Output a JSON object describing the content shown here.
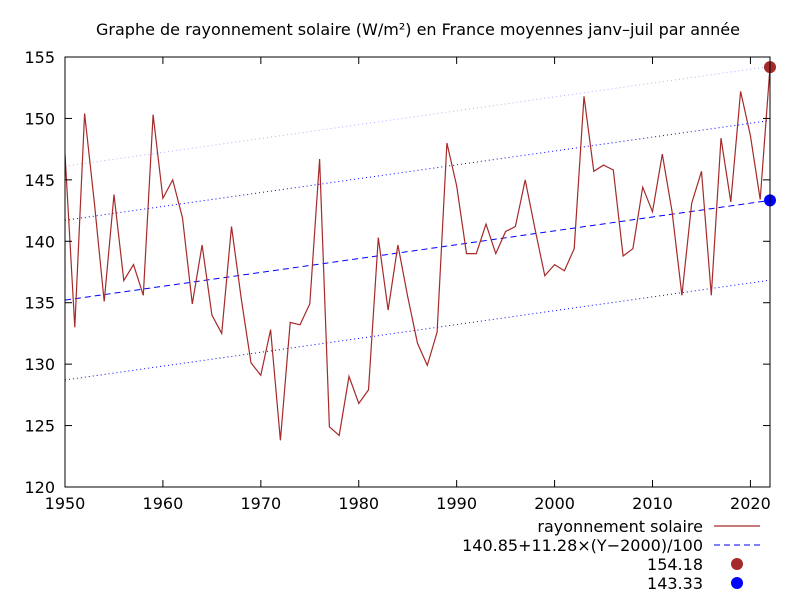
{
  "chart_data": {
    "type": "line",
    "title": "Graphe de rayonnement solaire (W/m²) en France moyennes janv–juil par année",
    "xlabel": "",
    "ylabel": "",
    "xlim": [
      1950,
      2022
    ],
    "ylim": [
      120,
      155
    ],
    "xticks": [
      1950,
      1960,
      1970,
      1980,
      1990,
      2000,
      2010,
      2020
    ],
    "yticks": [
      120,
      125,
      130,
      135,
      140,
      145,
      150,
      155
    ],
    "grid": false,
    "legend_position": "bottom-right",
    "series": [
      {
        "name": "rayonnement solaire",
        "kind": "line",
        "color": "#a52a2a",
        "x": [
          1950,
          1951,
          1952,
          1953,
          1954,
          1955,
          1956,
          1957,
          1958,
          1959,
          1960,
          1961,
          1962,
          1963,
          1964,
          1965,
          1966,
          1967,
          1968,
          1969,
          1970,
          1971,
          1972,
          1973,
          1974,
          1975,
          1976,
          1977,
          1978,
          1979,
          1980,
          1981,
          1982,
          1983,
          1984,
          1985,
          1986,
          1987,
          1988,
          1989,
          1990,
          1991,
          1992,
          1993,
          1994,
          1995,
          1996,
          1997,
          1998,
          1999,
          2000,
          2001,
          2002,
          2003,
          2004,
          2005,
          2006,
          2007,
          2008,
          2009,
          2010,
          2011,
          2012,
          2013,
          2014,
          2015,
          2016,
          2017,
          2018,
          2019,
          2020,
          2021,
          2022
        ],
        "values": [
          147.1,
          133.0,
          150.4,
          143.1,
          135.1,
          143.8,
          136.8,
          138.1,
          135.6,
          150.3,
          143.5,
          145.0,
          141.9,
          134.9,
          139.7,
          134.0,
          132.5,
          141.2,
          135.3,
          130.1,
          129.1,
          132.8,
          123.8,
          133.4,
          133.2,
          134.9,
          146.7,
          124.9,
          124.2,
          129.0,
          126.8,
          127.9,
          140.3,
          134.4,
          139.7,
          135.5,
          131.7,
          129.9,
          132.6,
          148.0,
          144.5,
          139.0,
          139.0,
          141.4,
          139.0,
          140.8,
          141.2,
          145.0,
          141.0,
          137.2,
          138.1,
          137.6,
          139.4,
          151.8,
          145.7,
          146.2,
          145.8,
          138.8,
          139.4,
          144.4,
          142.4,
          147.1,
          142.4,
          135.6,
          143.1,
          145.7,
          135.6,
          148.4,
          143.2,
          152.2,
          148.6,
          143.4,
          154.18
        ]
      },
      {
        "name": "140.85+11.28×(Y−2000)/100",
        "kind": "trend",
        "color": "#0000ff",
        "intercept": 140.85,
        "slope_per_100_years": 11.28,
        "reference_year": 2000
      },
      {
        "name": "154.18",
        "kind": "point",
        "color": "#a52a2a",
        "x": [
          2022
        ],
        "values": [
          154.18
        ]
      },
      {
        "name": "143.33",
        "kind": "point",
        "color": "#0000ff",
        "x": [
          2022
        ],
        "values": [
          143.33
        ]
      }
    ],
    "envelopes": [
      {
        "kind": "dotted",
        "color": "#0000ff",
        "offset": 6.5
      },
      {
        "kind": "dotted",
        "color": "#0000ff",
        "offset": -6.5
      },
      {
        "kind": "dotted",
        "color": "#b0b0ff",
        "offset": 10.9
      }
    ]
  }
}
